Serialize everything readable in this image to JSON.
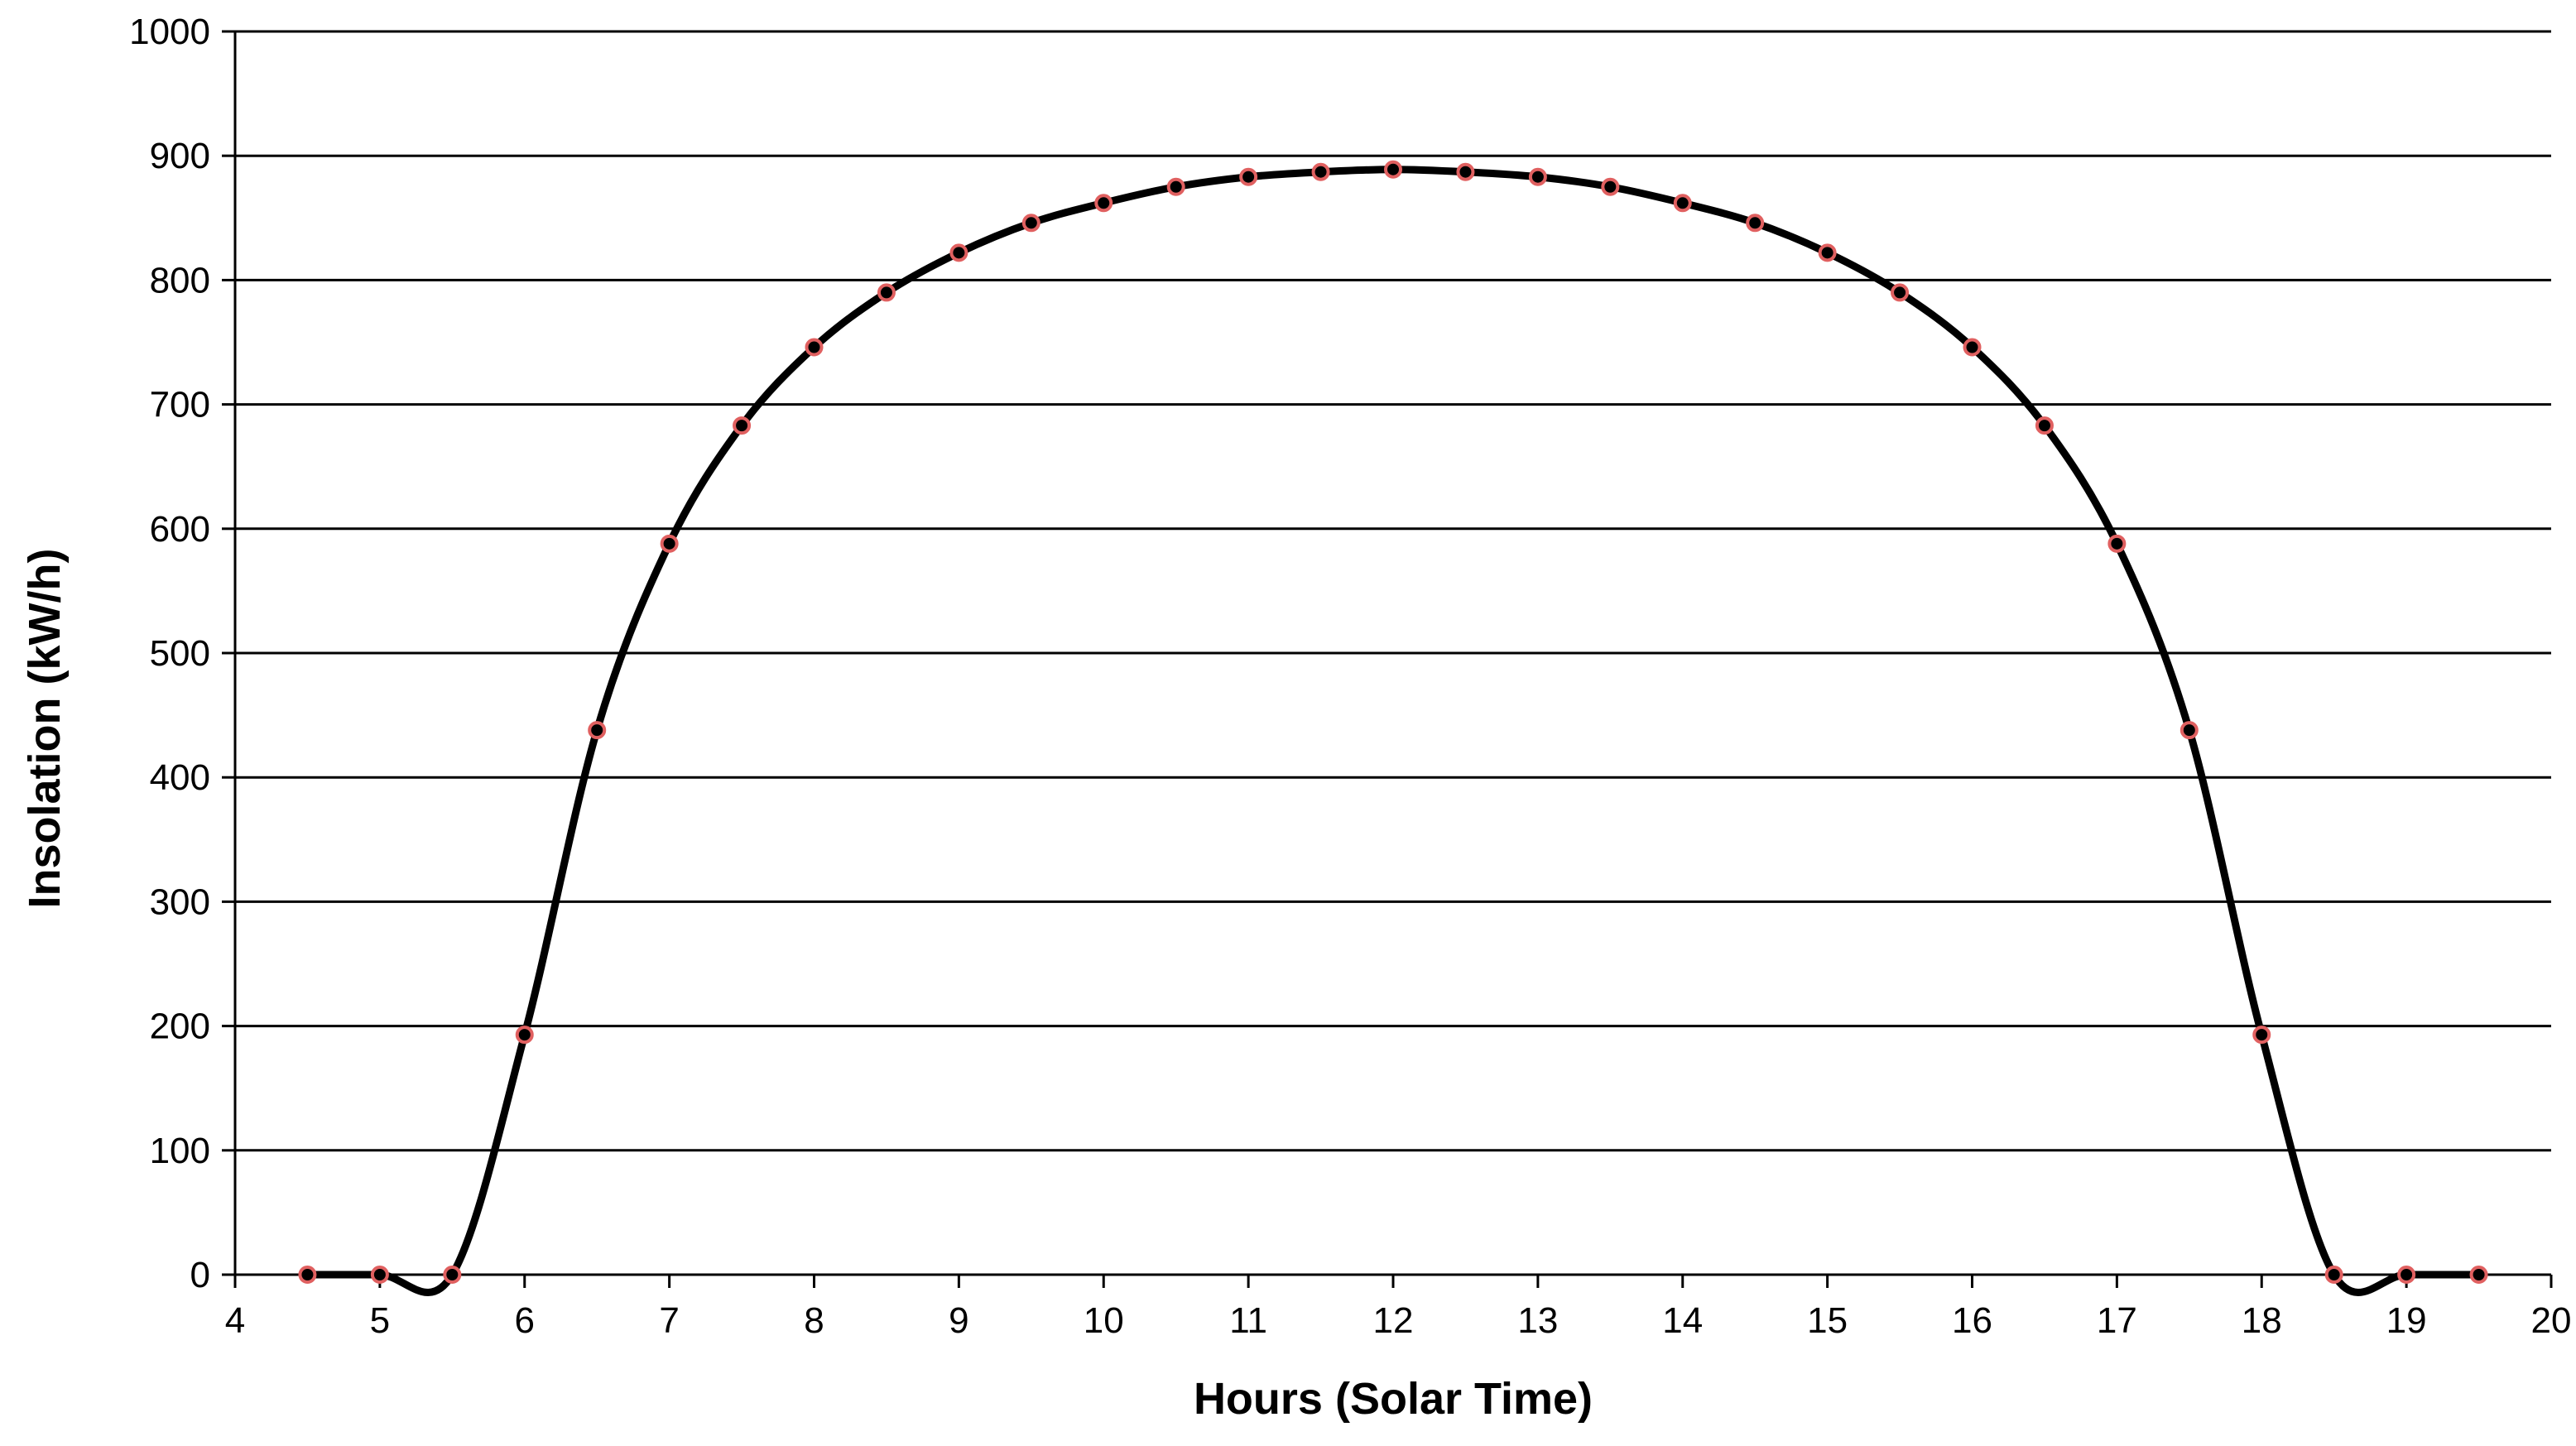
{
  "chart_data": {
    "type": "scatter",
    "xlabel": "Hours (Solar Time)",
    "ylabel": "Insolation (kW/h)",
    "xlim": [
      4,
      20
    ],
    "ylim": [
      0,
      1000
    ],
    "x_ticks": [
      4,
      5,
      6,
      7,
      8,
      9,
      10,
      11,
      12,
      13,
      14,
      15,
      16,
      17,
      18,
      19,
      20
    ],
    "y_ticks": [
      0,
      100,
      200,
      300,
      400,
      500,
      600,
      700,
      800,
      900,
      1000
    ],
    "grid": "horizontal major gridlines",
    "legend": "none",
    "smooth_line": true,
    "series": [
      {
        "line_color": "#000000",
        "marker_fill": "#000000",
        "marker_edge": "#e06060",
        "x": [
          4.5,
          5,
          5.5,
          6,
          6.5,
          7,
          7.5,
          8,
          8.5,
          9,
          9.5,
          10,
          10.5,
          11,
          11.5,
          12,
          12.5,
          13,
          13.5,
          14,
          14.5,
          15,
          15.5,
          16,
          16.5,
          17,
          17.5,
          18,
          18.5,
          19,
          19.5
        ],
        "y": [
          0,
          0,
          0,
          193,
          438,
          588,
          683,
          746,
          790,
          822,
          846,
          862,
          875,
          883,
          887,
          889,
          887,
          883,
          875,
          862,
          846,
          822,
          790,
          746,
          683,
          588,
          438,
          193,
          0,
          0,
          0
        ]
      }
    ]
  }
}
